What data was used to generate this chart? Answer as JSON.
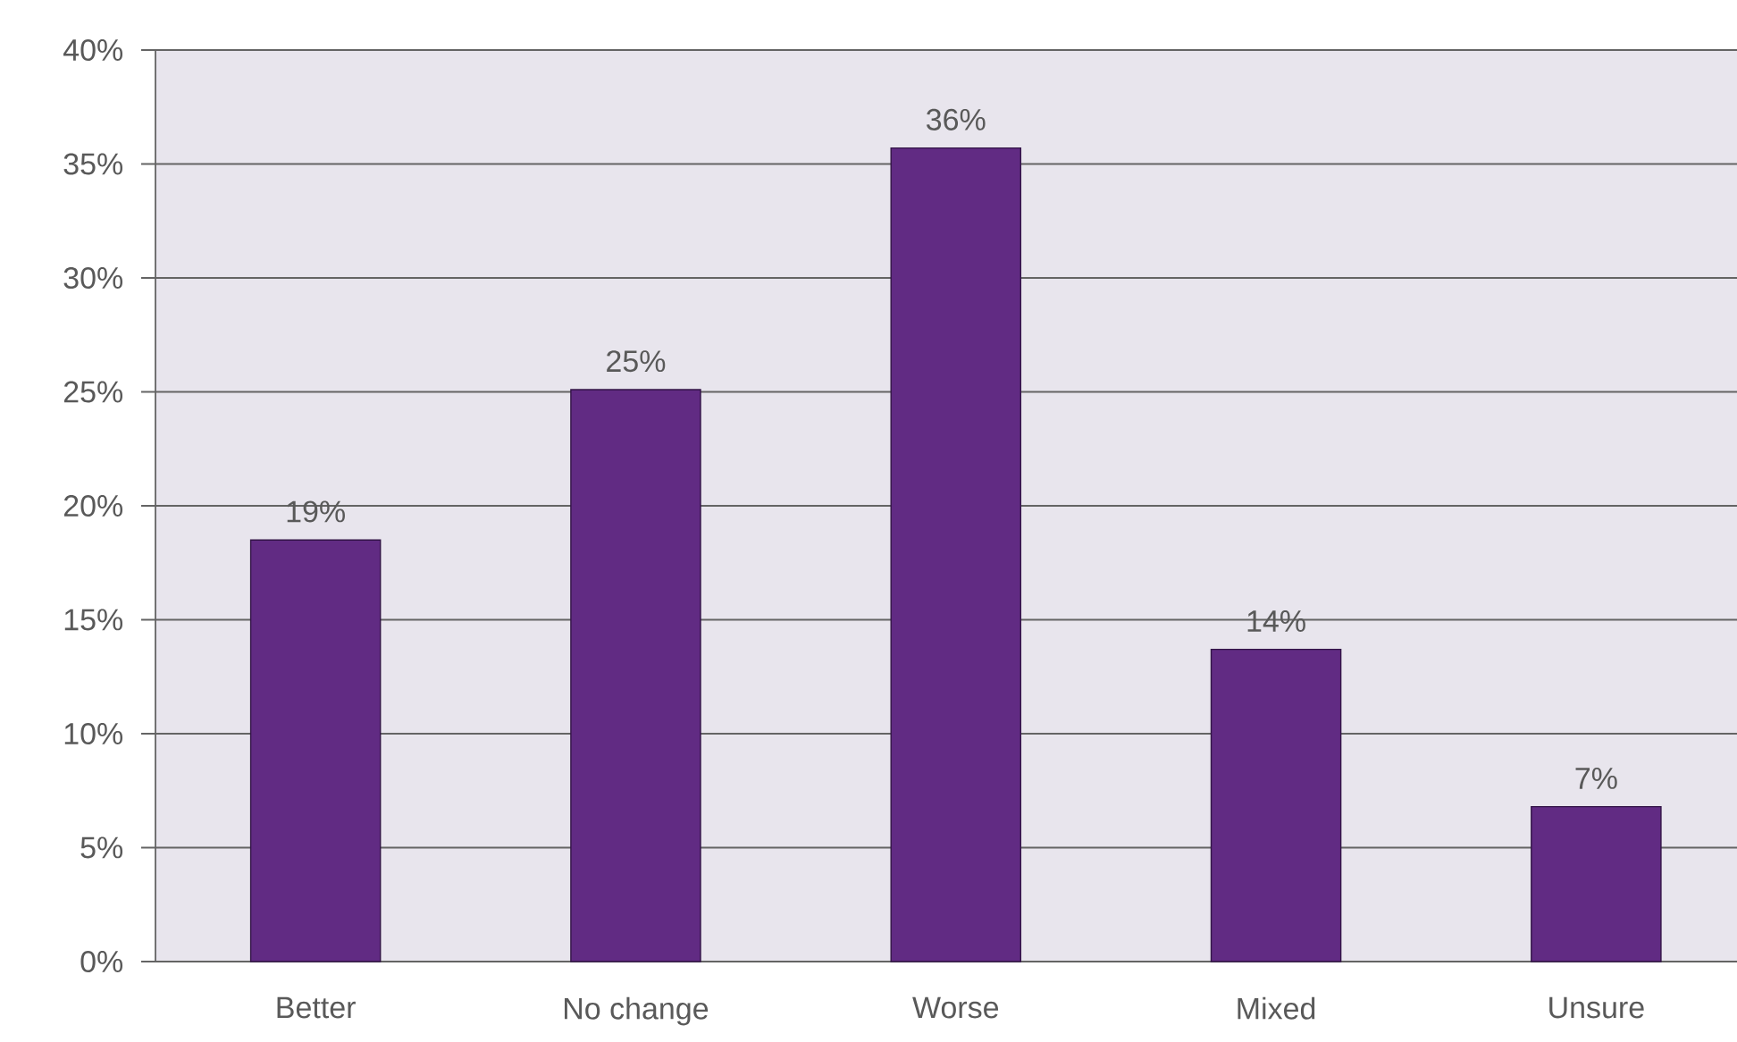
{
  "chart_data": {
    "type": "bar",
    "categories": [
      "Better",
      "No change",
      "Worse",
      "Mixed",
      "Unsure"
    ],
    "values": [
      18.5,
      25.1,
      35.7,
      13.7,
      6.8
    ],
    "value_labels": [
      "19%",
      "25%",
      "36%",
      "14%",
      "7%"
    ],
    "color": "#612b83",
    "ylim": [
      0,
      40
    ],
    "yticks": [
      {
        "value": 0,
        "label": "0%"
      },
      {
        "value": 5,
        "label": "5%"
      },
      {
        "value": 10,
        "label": "10%"
      },
      {
        "value": 15,
        "label": "15%"
      },
      {
        "value": 20,
        "label": "20%"
      },
      {
        "value": 25,
        "label": "25%"
      },
      {
        "value": 30,
        "label": "30%"
      },
      {
        "value": 35,
        "label": "35%"
      },
      {
        "value": 40,
        "label": "40%"
      }
    ],
    "grid": "y"
  }
}
